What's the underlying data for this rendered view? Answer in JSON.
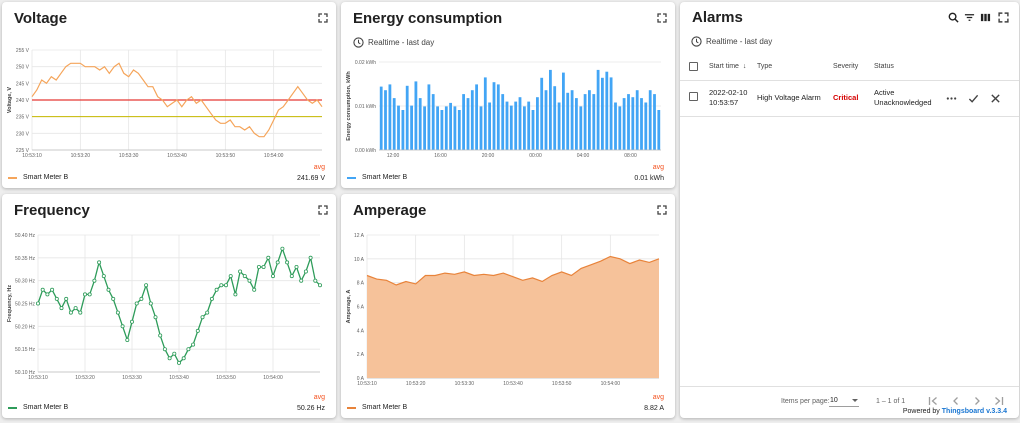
{
  "voltage": {
    "title": "Voltage",
    "y_unit_label": "Voltage, V",
    "legend": {
      "series": "Smart Meter B",
      "avg_label": "avg",
      "avg_value": "241.69 V"
    },
    "colors": {
      "series": "#f5a55b",
      "upper_threshold": "#e53935",
      "lower_threshold": "#c6b800"
    }
  },
  "energy": {
    "title": "Energy consumption",
    "subtitle": "Realtime - last day",
    "y_unit_label": "Energy consumption, kWh",
    "legend": {
      "series": "Smart Meter B",
      "avg_label": "avg",
      "avg_value": "0.01 kWh"
    },
    "colors": {
      "series": "#42a5f5"
    }
  },
  "frequency": {
    "title": "Frequency",
    "y_unit_label": "Frequency, Hz",
    "legend": {
      "series": "Smart Meter B",
      "avg_label": "avg",
      "avg_value": "50.26 Hz"
    },
    "colors": {
      "series": "#2e9c5a"
    }
  },
  "amperage": {
    "title": "Amperage",
    "y_unit_label": "Amperage, A",
    "legend": {
      "series": "Smart Meter B",
      "avg_label": "avg",
      "avg_value": "8.82 A"
    },
    "colors": {
      "series": "#e8833a",
      "fill": "#f6c29a"
    }
  },
  "alarms": {
    "title": "Alarms",
    "subtitle": "Realtime - last day",
    "columns": {
      "start_time": "Start time",
      "type": "Type",
      "severity": "Severity",
      "status": "Status"
    },
    "rows": [
      {
        "start_time_date": "2022-02-10",
        "start_time_time": "10:53:57",
        "type": "High Voltage Alarm",
        "severity": "Critical",
        "status_line1": "Active",
        "status_line2": "Unacknowledged"
      }
    ],
    "colors": {
      "critical": "#d50000"
    },
    "pagination": {
      "items_per_page_label": "Items per page:",
      "items_per_page_value": "10",
      "range": "1 – 1 of 1"
    },
    "powered_prefix": "Powered by",
    "powered_brand": "Thingsboard",
    "powered_version": "v.3.3.4"
  },
  "chart_data": [
    {
      "type": "line",
      "ylabel": "Voltage, V",
      "ylim": [
        225,
        255
      ],
      "y_ticks": [
        "225 V",
        "230 V",
        "235 V",
        "240 V",
        "245 V",
        "250 V",
        "255 V"
      ],
      "x_ticks": [
        "10:53:10",
        "10:53:20",
        "10:53:30",
        "10:53:40",
        "10:53:50",
        "10:54:00"
      ],
      "x_range_s": [
        0,
        60
      ],
      "thresholds": [
        240,
        235
      ],
      "series": [
        {
          "name": "Smart Meter B",
          "x": [
            0,
            1,
            2,
            3,
            4,
            5,
            6,
            7,
            8,
            9,
            10,
            11,
            12,
            13,
            14,
            15,
            16,
            17,
            18,
            19,
            20,
            21,
            22,
            23,
            24,
            25,
            26,
            27,
            28,
            29,
            30,
            31,
            32,
            33,
            34,
            35,
            36,
            37,
            38,
            39,
            40,
            41,
            42,
            43,
            44,
            45,
            46,
            47,
            48,
            49,
            50,
            51,
            52,
            53,
            54,
            55,
            56,
            57,
            58,
            59,
            60
          ],
          "y": [
            241,
            243,
            246,
            245,
            247,
            246,
            248,
            250,
            251,
            251,
            251,
            250,
            250,
            250,
            249,
            250,
            248,
            250,
            251,
            248,
            247,
            249,
            248,
            246,
            244,
            244,
            241,
            240,
            238,
            239,
            240,
            238,
            240,
            241,
            239,
            240,
            238,
            236,
            234,
            233,
            233,
            234,
            232,
            232,
            231,
            232,
            230,
            229,
            229,
            231,
            234,
            237,
            238,
            240,
            242,
            244,
            242,
            240,
            239,
            240,
            238
          ]
        }
      ]
    },
    {
      "type": "bar",
      "ylabel": "Energy consumption, kWh",
      "ylim": [
        0,
        0.02
      ],
      "y_ticks": [
        "0.00 kWh",
        "0.01 kWh",
        "0.02 kWh"
      ],
      "x_ticks": [
        "12:00",
        "16:00",
        "20:00",
        "00:00",
        "04:00",
        "08:00"
      ],
      "series": [
        {
          "name": "Smart Meter B",
          "values": [
            0.0144,
            0.0136,
            0.0149,
            0.0118,
            0.0101,
            0.0091,
            0.0146,
            0.0101,
            0.0156,
            0.0118,
            0.0099,
            0.0149,
            0.0127,
            0.0099,
            0.0091,
            0.0099,
            0.0107,
            0.0099,
            0.0091,
            0.0127,
            0.0118,
            0.0136,
            0.0149,
            0.0099,
            0.0165,
            0.0108,
            0.0154,
            0.0149,
            0.0127,
            0.011,
            0.0101,
            0.011,
            0.012,
            0.0099,
            0.011,
            0.0091,
            0.012,
            0.0164,
            0.0136,
            0.0182,
            0.0145,
            0.0108,
            0.0176,
            0.013,
            0.0136,
            0.0118,
            0.0099,
            0.0127,
            0.0136,
            0.0127,
            0.0182,
            0.0164,
            0.0178,
            0.0165,
            0.0108,
            0.0099,
            0.0118,
            0.0127,
            0.012,
            0.0136,
            0.0118,
            0.0108,
            0.0136,
            0.0127,
            0.0091
          ]
        }
      ]
    },
    {
      "type": "line",
      "ylabel": "Frequency, Hz",
      "ylim": [
        50.1,
        50.4
      ],
      "y_ticks": [
        "50.10 Hz",
        "50.15 Hz",
        "50.20 Hz",
        "50.25 Hz",
        "50.30 Hz",
        "50.35 Hz",
        "50.40 Hz"
      ],
      "x_ticks": [
        "10:53:10",
        "10:53:20",
        "10:53:30",
        "10:53:40",
        "10:53:50",
        "10:54:00"
      ],
      "x_range_s": [
        0,
        60
      ],
      "series": [
        {
          "name": "Smart Meter B",
          "x": [
            0,
            1,
            2,
            3,
            4,
            5,
            6,
            7,
            8,
            9,
            10,
            11,
            12,
            13,
            14,
            15,
            16,
            17,
            18,
            19,
            20,
            21,
            22,
            23,
            24,
            25,
            26,
            27,
            28,
            29,
            30,
            31,
            32,
            33,
            34,
            35,
            36,
            37,
            38,
            39,
            40,
            41,
            42,
            43,
            44,
            45,
            46,
            47,
            48,
            49,
            50,
            51,
            52,
            53,
            54,
            55,
            56,
            57,
            58,
            59,
            60
          ],
          "y": [
            50.25,
            50.28,
            50.27,
            50.28,
            50.26,
            50.24,
            50.26,
            50.23,
            50.24,
            50.23,
            50.27,
            50.27,
            50.3,
            50.34,
            50.31,
            50.28,
            50.26,
            50.23,
            50.2,
            50.17,
            50.21,
            50.25,
            50.26,
            50.29,
            50.25,
            50.22,
            50.18,
            50.15,
            50.13,
            50.14,
            50.12,
            50.13,
            50.15,
            50.16,
            50.19,
            50.22,
            50.23,
            50.26,
            50.28,
            50.29,
            50.29,
            50.31,
            50.27,
            50.32,
            50.31,
            50.3,
            50.28,
            50.33,
            50.33,
            50.35,
            50.31,
            50.34,
            50.37,
            50.34,
            50.31,
            50.33,
            50.3,
            50.32,
            50.35,
            50.3,
            50.29
          ]
        }
      ]
    },
    {
      "type": "area",
      "ylabel": "Amperage, A",
      "ylim": [
        0,
        12
      ],
      "y_ticks": [
        "0 A",
        "2 A",
        "4 A",
        "6 A",
        "8 A",
        "10 A",
        "12 A"
      ],
      "x_ticks": [
        "10:53:10",
        "10:53:20",
        "10:53:30",
        "10:53:40",
        "10:53:50",
        "10:54:00"
      ],
      "x_range_s": [
        0,
        60
      ],
      "series": [
        {
          "name": "Smart Meter B",
          "x": [
            0,
            2,
            4,
            6,
            8,
            10,
            12,
            14,
            16,
            18,
            20,
            22,
            24,
            26,
            28,
            30,
            32,
            34,
            36,
            38,
            40,
            42,
            44,
            46,
            48,
            50,
            52,
            54,
            56,
            58,
            60
          ],
          "y": [
            8.6,
            8.3,
            8.2,
            7.8,
            8.1,
            7.9,
            8.6,
            8.6,
            8.8,
            8.7,
            8.9,
            8.6,
            8.7,
            8.6,
            8.8,
            8.5,
            8.2,
            8.4,
            8.1,
            8.6,
            8.9,
            8.6,
            9.2,
            9.5,
            9.8,
            10.2,
            10.0,
            9.6,
            9.9,
            9.7,
            10.0
          ]
        }
      ]
    }
  ]
}
